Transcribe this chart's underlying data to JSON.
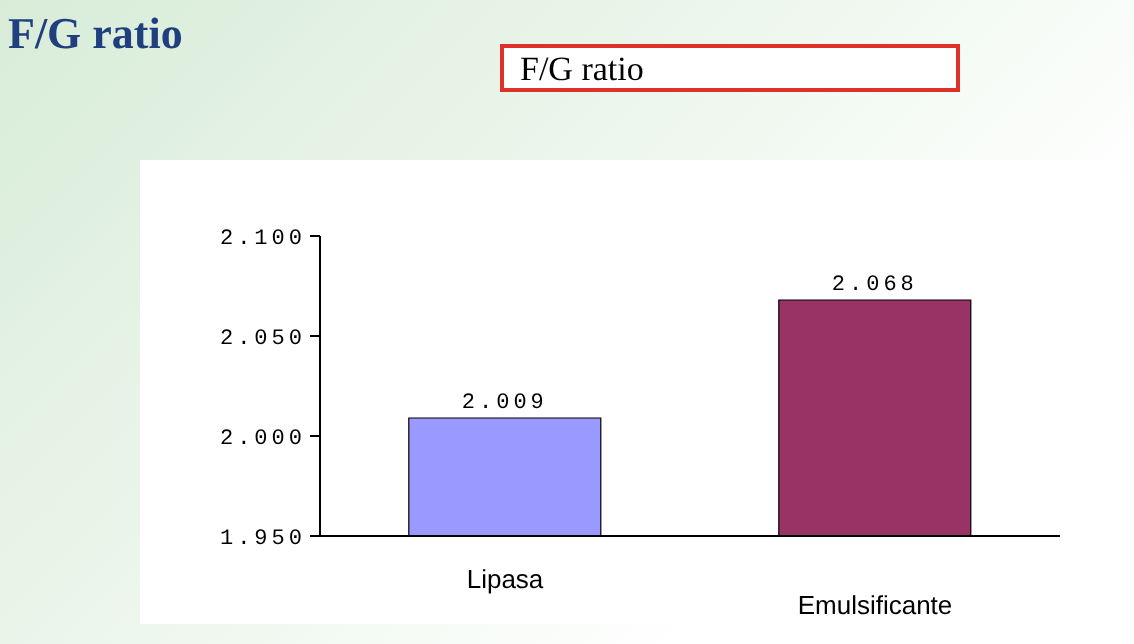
{
  "chart_data": {
    "type": "bar",
    "title": "F/G ratio",
    "subtitle": "F/G ratio",
    "categories": [
      "Lipasa",
      "Emulsificante"
    ],
    "values": [
      2.009,
      2.068
    ],
    "colors": [
      "#9999ff",
      "#993366"
    ],
    "ylim": [
      1.95,
      2.1
    ],
    "yticks": [
      {
        "value": 1.95,
        "label": "1.950"
      },
      {
        "value": 2.0,
        "label": "2.000"
      },
      {
        "value": 2.05,
        "label": "2.050"
      },
      {
        "value": 2.1,
        "label": "2.100"
      }
    ],
    "data_labels": true
  }
}
